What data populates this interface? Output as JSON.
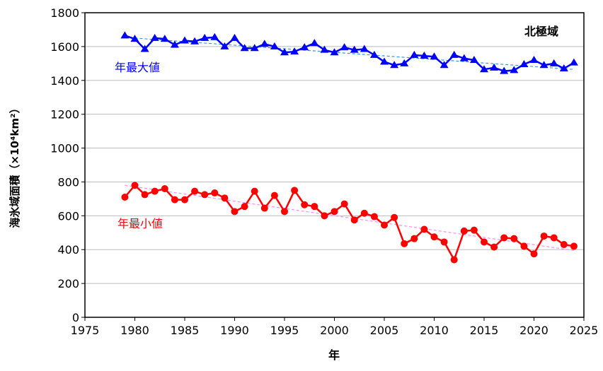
{
  "chart_data": {
    "type": "line",
    "title": "北極域",
    "xlabel": "年",
    "ylabel": "海氷域面積（×10⁴km²）",
    "xlim": [
      1975,
      2025
    ],
    "ylim": [
      0,
      1800
    ],
    "xticks": [
      1975,
      1980,
      1985,
      1990,
      1995,
      2000,
      2005,
      2010,
      2015,
      2020,
      2025
    ],
    "yticks": [
      0,
      200,
      400,
      600,
      800,
      1000,
      1200,
      1400,
      1600,
      1800
    ],
    "grid": "horizontal",
    "x": [
      1979,
      1980,
      1981,
      1982,
      1983,
      1984,
      1985,
      1986,
      1987,
      1988,
      1989,
      1990,
      1991,
      1992,
      1993,
      1994,
      1995,
      1996,
      1997,
      1998,
      1999,
      2000,
      2001,
      2002,
      2003,
      2004,
      2005,
      2006,
      2007,
      2008,
      2009,
      2010,
      2011,
      2012,
      2013,
      2014,
      2015,
      2016,
      2017,
      2018,
      2019,
      2020,
      2021,
      2022,
      2023,
      2024
    ],
    "series": [
      {
        "name": "年最大値",
        "color": "#0000ff",
        "marker": "triangle",
        "trend_color": "#3399dd",
        "trend": [
          [
            1980,
            1650
          ],
          [
            2024,
            1465
          ]
        ],
        "values": [
          1665,
          1645,
          1585,
          1650,
          1645,
          1610,
          1635,
          1630,
          1650,
          1655,
          1600,
          1650,
          1590,
          1590,
          1615,
          1600,
          1565,
          1570,
          1595,
          1620,
          1580,
          1565,
          1595,
          1580,
          1585,
          1550,
          1510,
          1490,
          1500,
          1550,
          1545,
          1540,
          1490,
          1550,
          1530,
          1520,
          1465,
          1475,
          1455,
          1460,
          1495,
          1520,
          1490,
          1500,
          1470,
          1505
        ]
      },
      {
        "name": "年最小値",
        "color": "#ff0000",
        "marker": "circle",
        "trend_color": "#ff88ff",
        "trend": [
          [
            1979,
            780
          ],
          [
            2024,
            395
          ]
        ],
        "values": [
          710,
          780,
          725,
          745,
          760,
          695,
          695,
          745,
          725,
          735,
          705,
          625,
          655,
          745,
          645,
          720,
          625,
          750,
          665,
          655,
          600,
          625,
          670,
          575,
          615,
          595,
          545,
          590,
          435,
          465,
          520,
          475,
          445,
          340,
          510,
          515,
          445,
          415,
          470,
          465,
          420,
          375,
          480,
          470,
          430,
          420
        ]
      }
    ]
  }
}
